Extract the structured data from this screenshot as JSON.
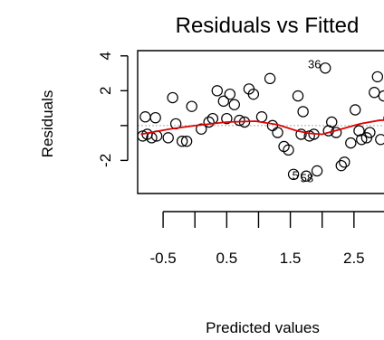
{
  "chart_data": {
    "type": "scatter",
    "title": "Residuals vs Fitted",
    "xlabel": "Predicted values",
    "ylabel": "Residuals",
    "xlim": [
      -0.9,
      3.2
    ],
    "ylim": [
      -3.9,
      4.3
    ],
    "x_ticks": [
      -0.5,
      0,
      0.5,
      1,
      1.5,
      2,
      2.5,
      3
    ],
    "x_tick_labels": [
      "-0.5",
      "0.5",
      "1.5",
      "2.5"
    ],
    "x_tick_label_values": [
      -0.5,
      0.5,
      1.5,
      2.5
    ],
    "y_tick_labels": [
      "-2",
      "2",
      "4"
    ],
    "y_tick_label_values": [
      -2,
      2,
      4
    ],
    "y_ticks": [
      -2,
      0,
      2,
      4
    ],
    "reference_line_y": 0,
    "reference_line_color": "#bbbbbb",
    "smooth_color": "#e00000",
    "point_color": "#000000",
    "points": [
      {
        "x": -0.82,
        "y": -0.6
      },
      {
        "x": -0.75,
        "y": -0.5
      },
      {
        "x": -0.68,
        "y": -0.7
      },
      {
        "x": -0.6,
        "y": -0.6
      },
      {
        "x": -0.78,
        "y": 0.5
      },
      {
        "x": -0.62,
        "y": 0.45
      },
      {
        "x": -0.42,
        "y": -0.7
      },
      {
        "x": -0.2,
        "y": -0.9
      },
      {
        "x": -0.13,
        "y": -0.9
      },
      {
        "x": -0.35,
        "y": 1.6
      },
      {
        "x": -0.3,
        "y": 0.1
      },
      {
        "x": -0.05,
        "y": 1.1
      },
      {
        "x": 0.1,
        "y": -0.2
      },
      {
        "x": 0.22,
        "y": 0.2
      },
      {
        "x": 0.28,
        "y": 0.4
      },
      {
        "x": 0.35,
        "y": 2.0
      },
      {
        "x": 0.45,
        "y": 1.4
      },
      {
        "x": 0.5,
        "y": 0.4
      },
      {
        "x": 0.55,
        "y": 1.8
      },
      {
        "x": 0.62,
        "y": 1.2
      },
      {
        "x": 0.7,
        "y": 0.3
      },
      {
        "x": 0.78,
        "y": 0.2
      },
      {
        "x": 0.85,
        "y": 2.1
      },
      {
        "x": 0.92,
        "y": 1.8
      },
      {
        "x": 1.05,
        "y": 0.5
      },
      {
        "x": 1.18,
        "y": 2.7
      },
      {
        "x": 1.22,
        "y": 0.0
      },
      {
        "x": 1.3,
        "y": -0.4
      },
      {
        "x": 1.4,
        "y": -1.2
      },
      {
        "x": 1.47,
        "y": -1.4
      },
      {
        "x": 1.55,
        "y": -2.8
      },
      {
        "x": 1.62,
        "y": 1.7
      },
      {
        "x": 1.67,
        "y": -0.5
      },
      {
        "x": 1.7,
        "y": 0.8
      },
      {
        "x": 1.75,
        "y": -2.9
      },
      {
        "x": 1.8,
        "y": -0.6
      },
      {
        "x": 1.87,
        "y": -0.5
      },
      {
        "x": 1.92,
        "y": -2.6
      },
      {
        "x": 2.05,
        "y": 3.3
      },
      {
        "x": 2.1,
        "y": -0.3
      },
      {
        "x": 2.15,
        "y": 0.2
      },
      {
        "x": 2.22,
        "y": -0.4
      },
      {
        "x": 2.3,
        "y": -2.3
      },
      {
        "x": 2.35,
        "y": -2.1
      },
      {
        "x": 2.45,
        "y": -1.0
      },
      {
        "x": 2.52,
        "y": 0.9
      },
      {
        "x": 2.58,
        "y": -0.3
      },
      {
        "x": 2.62,
        "y": -0.8
      },
      {
        "x": 2.7,
        "y": -0.7
      },
      {
        "x": 2.75,
        "y": -0.4
      },
      {
        "x": 2.82,
        "y": 1.9
      },
      {
        "x": 2.87,
        "y": 2.8
      },
      {
        "x": 2.92,
        "y": -0.8
      },
      {
        "x": 2.97,
        "y": 1.7
      },
      {
        "x": 3.05,
        "y": 0.4
      },
      {
        "x": 3.1,
        "y": 0.9
      }
    ],
    "point_labels": [
      {
        "text": "36",
        "x": 1.88,
        "y": 3.5
      },
      {
        "text": "5",
        "x": 1.58,
        "y": -2.9
      },
      {
        "text": "58",
        "x": 1.76,
        "y": -3.05
      }
    ],
    "smooth_line": {
      "x": [
        -0.85,
        -0.4,
        0.0,
        0.5,
        0.95,
        1.3,
        1.6,
        1.8,
        2.0,
        2.3,
        2.6,
        2.9,
        3.2
      ],
      "y": [
        -0.5,
        -0.2,
        0.0,
        0.2,
        0.25,
        0.05,
        -0.3,
        -0.45,
        -0.5,
        -0.2,
        0.1,
        0.3,
        0.35
      ]
    }
  }
}
